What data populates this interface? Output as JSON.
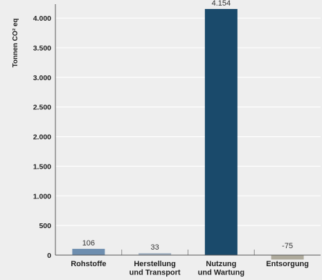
{
  "chart_data": {
    "type": "bar",
    "ylabel": "Tonnen CO² eq",
    "xlabel": "",
    "ylim": [
      0,
      4154
    ],
    "yticks": [
      0,
      500,
      1000,
      1500,
      2000,
      2500,
      3000,
      3500,
      4000
    ],
    "ytick_labels": [
      "0",
      "500",
      "1.000",
      "1.500",
      "2.000",
      "2.500",
      "3.000",
      "3.500",
      "4.000"
    ],
    "categories": [
      [
        "Rohstoffe"
      ],
      [
        "Herstellung",
        "und Transport"
      ],
      [
        "Nutzung",
        "und Wartung"
      ],
      [
        "Entsorgung"
      ]
    ],
    "values": [
      106,
      33,
      4154,
      -75
    ],
    "value_labels": [
      "106",
      "33",
      "4.154",
      "-75"
    ],
    "colors": [
      "#6e8eaf",
      "#a3b2c2",
      "#1a4a6b",
      "#aeaa9c"
    ],
    "grid": true,
    "legend": "none"
  }
}
